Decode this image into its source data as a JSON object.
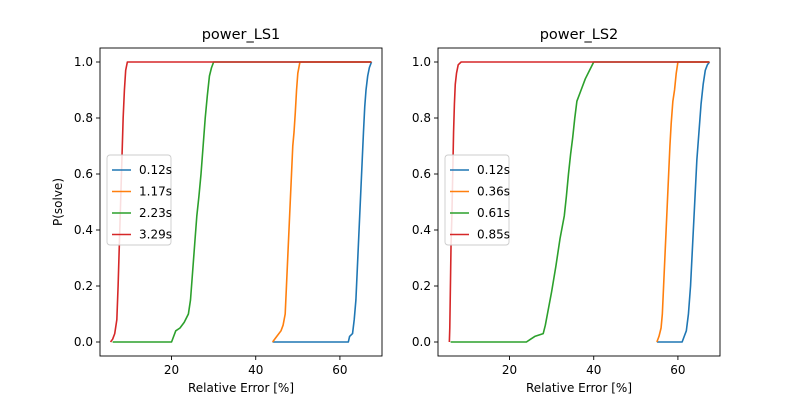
{
  "chart_data": [
    {
      "type": "line",
      "title": "power_LS1",
      "xlabel": "Relative Error [%]",
      "ylabel": "P(solve)",
      "xlim": [
        3,
        70
      ],
      "ylim": [
        -0.05,
        1.05
      ],
      "xticks": [
        20,
        40,
        60
      ],
      "yticks": [
        0.0,
        0.2,
        0.4,
        0.6,
        0.8,
        1.0
      ],
      "legend_position": "center-left",
      "series": [
        {
          "name": "0.12s",
          "color": "#1f77b4",
          "x": [
            44,
            50,
            55,
            60,
            62,
            62.3,
            63,
            63.4,
            63.8,
            64.1,
            64.4,
            64.7,
            65,
            65.3,
            65.6,
            65.9,
            66.2,
            66.6,
            67,
            67.5
          ],
          "y": [
            0,
            0,
            0,
            0,
            0,
            0.02,
            0.03,
            0.08,
            0.15,
            0.25,
            0.35,
            0.45,
            0.55,
            0.65,
            0.75,
            0.84,
            0.9,
            0.95,
            0.98,
            1.0
          ]
        },
        {
          "name": "1.17s",
          "color": "#ff7f0e",
          "x": [
            44,
            45,
            46,
            46.5,
            47,
            47.3,
            47.6,
            47.9,
            48.2,
            48.5,
            48.8,
            49.1,
            49.4,
            49.7,
            50,
            50.5,
            52,
            60,
            67.5
          ],
          "y": [
            0,
            0.02,
            0.04,
            0.06,
            0.1,
            0.2,
            0.3,
            0.4,
            0.5,
            0.6,
            0.7,
            0.75,
            0.82,
            0.9,
            0.96,
            1.0,
            1.0,
            1.0,
            1.0
          ]
        },
        {
          "name": "2.23s",
          "color": "#2ca02c",
          "x": [
            6,
            10,
            15,
            20,
            20.5,
            21,
            22,
            23,
            24,
            24.5,
            25,
            25.5,
            26,
            26.5,
            27,
            27.5,
            28,
            28.5,
            29,
            29.5,
            30,
            35,
            67.5
          ],
          "y": [
            0,
            0,
            0,
            0,
            0.02,
            0.04,
            0.05,
            0.07,
            0.1,
            0.15,
            0.25,
            0.35,
            0.45,
            0.52,
            0.6,
            0.7,
            0.8,
            0.88,
            0.95,
            0.98,
            1.0,
            1.0,
            1.0
          ]
        },
        {
          "name": "3.29s",
          "color": "#d62728",
          "x": [
            5.5,
            6,
            6.5,
            7,
            7.3,
            7.6,
            7.9,
            8.2,
            8.5,
            8.8,
            9.1,
            9.5,
            10,
            20,
            67.5
          ],
          "y": [
            0,
            0.01,
            0.03,
            0.08,
            0.2,
            0.35,
            0.5,
            0.65,
            0.8,
            0.9,
            0.97,
            1.0,
            1.0,
            1.0,
            1.0
          ]
        }
      ]
    },
    {
      "type": "line",
      "title": "power_LS2",
      "xlabel": "Relative Error [%]",
      "ylabel": "",
      "xlim": [
        3,
        70
      ],
      "ylim": [
        -0.05,
        1.05
      ],
      "xticks": [
        20,
        40,
        60
      ],
      "yticks": [
        0.0,
        0.2,
        0.4,
        0.6,
        0.8,
        1.0
      ],
      "legend_position": "center-left",
      "series": [
        {
          "name": "0.12s",
          "color": "#1f77b4",
          "x": [
            55,
            58,
            60,
            61,
            61.5,
            62,
            62.5,
            63,
            63.5,
            64,
            64.5,
            65,
            65.5,
            66,
            66.5,
            67,
            67.5
          ],
          "y": [
            0,
            0,
            0,
            0,
            0.02,
            0.04,
            0.1,
            0.2,
            0.35,
            0.5,
            0.65,
            0.75,
            0.85,
            0.92,
            0.97,
            0.99,
            1.0
          ]
        },
        {
          "name": "0.36s",
          "color": "#ff7f0e",
          "x": [
            55,
            55.5,
            56,
            56.3,
            56.6,
            56.9,
            57.2,
            57.5,
            57.8,
            58.1,
            58.4,
            58.8,
            59.2,
            59.6,
            60,
            62,
            67.5
          ],
          "y": [
            0,
            0.02,
            0.05,
            0.1,
            0.2,
            0.3,
            0.4,
            0.5,
            0.6,
            0.7,
            0.78,
            0.86,
            0.9,
            0.96,
            1.0,
            1.0,
            1.0
          ]
        },
        {
          "name": "0.61s",
          "color": "#2ca02c",
          "x": [
            6,
            10,
            20,
            24,
            25,
            26,
            28,
            28.5,
            29,
            30,
            31,
            32,
            33,
            33.5,
            34,
            34.5,
            35,
            35.5,
            36,
            37,
            38,
            39,
            40,
            67.5
          ],
          "y": [
            0,
            0,
            0,
            0,
            0.01,
            0.02,
            0.03,
            0.06,
            0.1,
            0.18,
            0.27,
            0.37,
            0.45,
            0.52,
            0.6,
            0.67,
            0.73,
            0.8,
            0.86,
            0.9,
            0.94,
            0.97,
            1.0,
            1.0
          ]
        },
        {
          "name": "0.85s",
          "color": "#d62728",
          "x": [
            5.7,
            5.8,
            6,
            6.1,
            6.3,
            6.5,
            6.7,
            6.9,
            7.1,
            7.4,
            7.8,
            8.5,
            10,
            20,
            67.5
          ],
          "y": [
            0,
            0.05,
            0.25,
            0.35,
            0.45,
            0.6,
            0.75,
            0.85,
            0.92,
            0.96,
            0.99,
            1.0,
            1.0,
            1.0,
            1.0
          ]
        }
      ]
    }
  ]
}
